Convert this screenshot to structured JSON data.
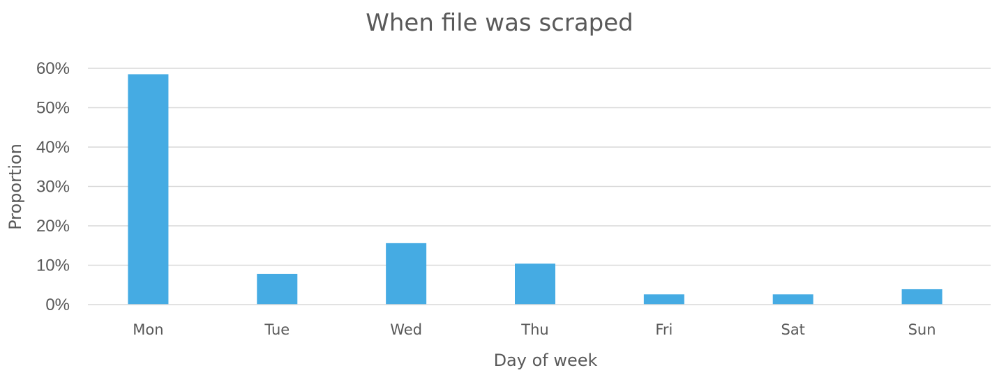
{
  "chart_data": {
    "type": "bar",
    "title": "When file was scraped",
    "xlabel": "Day of week",
    "ylabel": "Proportion",
    "categories": [
      "Mon",
      "Tue",
      "Wed",
      "Thu",
      "Fri",
      "Sat",
      "Sun"
    ],
    "values": [
      0.585,
      0.078,
      0.156,
      0.104,
      0.026,
      0.026,
      0.039
    ],
    "ylim": [
      0,
      0.6
    ],
    "yticks": [
      0,
      0.1,
      0.2,
      0.3,
      0.4,
      0.5,
      0.6
    ],
    "ytick_labels": [
      "0%",
      "10%",
      "20%",
      "30%",
      "40%",
      "50%",
      "60%"
    ],
    "grid": true,
    "legend": "none",
    "bar_color": "#45ABE3"
  }
}
